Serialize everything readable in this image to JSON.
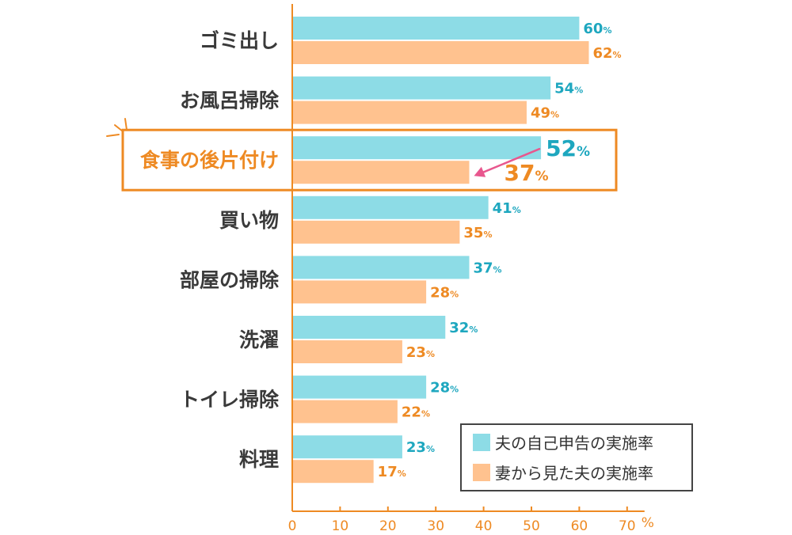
{
  "chart_data": {
    "type": "bar",
    "orientation": "horizontal",
    "categories": [
      "ゴミ出し",
      "お風呂掃除",
      "食事の後片付け",
      "買い物",
      "部屋の掃除",
      "洗濯",
      "トイレ掃除",
      "料理"
    ],
    "highlighted_category": "食事の後片付け",
    "series": [
      {
        "name": "夫の自己申告の実施率",
        "values": [
          60,
          54,
          52,
          41,
          37,
          32,
          28,
          23
        ],
        "color": "#8ddce6",
        "label_color": "#1ea7bf"
      },
      {
        "name": "妻から見た夫の実施率",
        "values": [
          62,
          49,
          37,
          35,
          28,
          23,
          22,
          17
        ],
        "color": "#ffc28f",
        "label_color": "#ee8a23"
      }
    ],
    "value_suffix": "%",
    "xlim": [
      0,
      70
    ],
    "x_ticks": [
      "0",
      "10",
      "20",
      "30",
      "40",
      "50",
      "60",
      "70"
    ],
    "x_unit": "%",
    "legend_position": "bottom-right",
    "grid": false,
    "axis_color": "#ee8a23",
    "highlight_color": "#ee8a23",
    "arrow_color": "#e8578e"
  }
}
